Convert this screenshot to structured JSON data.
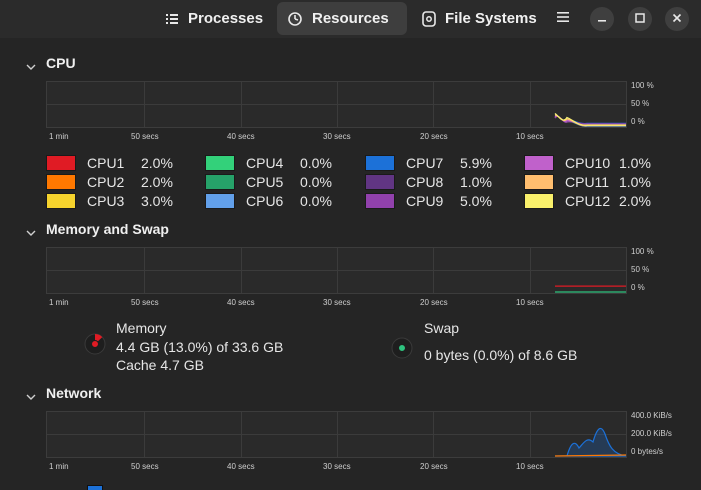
{
  "header": {
    "tabs": [
      {
        "label": "Processes",
        "icon": "list-icon"
      },
      {
        "label": "Resources",
        "icon": "gauge-icon"
      },
      {
        "label": "File Systems",
        "icon": "disk-icon"
      }
    ],
    "active_tab": "Resources"
  },
  "cpu": {
    "title": "CPU",
    "x_labels": [
      "1 min",
      "50 secs",
      "40 secs",
      "30 secs",
      "20 secs",
      "10 secs"
    ],
    "y_labels": [
      "100 %",
      "50 %",
      "0 %"
    ],
    "cores": [
      {
        "name": "CPU1",
        "value": "2.0%",
        "color": "#e01b24"
      },
      {
        "name": "CPU2",
        "value": "2.0%",
        "color": "#ff7800"
      },
      {
        "name": "CPU3",
        "value": "3.0%",
        "color": "#f6d32d"
      },
      {
        "name": "CPU4",
        "value": "0.0%",
        "color": "#33d17a"
      },
      {
        "name": "CPU5",
        "value": "0.0%",
        "color": "#26a269"
      },
      {
        "name": "CPU6",
        "value": "0.0%",
        "color": "#62a0ea"
      },
      {
        "name": "CPU7",
        "value": "5.9%",
        "color": "#1c71d8"
      },
      {
        "name": "CPU8",
        "value": "1.0%",
        "color": "#613583"
      },
      {
        "name": "CPU9",
        "value": "5.0%",
        "color": "#9141ac"
      },
      {
        "name": "CPU10",
        "value": "1.0%",
        "color": "#c061cb"
      },
      {
        "name": "CPU11",
        "value": "1.0%",
        "color": "#ffbe6f"
      },
      {
        "name": "CPU12",
        "value": "2.0%",
        "color": "#f9f06b"
      }
    ]
  },
  "memory": {
    "title": "Memory and Swap",
    "x_labels": [
      "1 min",
      "50 secs",
      "40 secs",
      "30 secs",
      "20 secs",
      "10 secs"
    ],
    "y_labels": [
      "100 %",
      "50 %",
      "0 %"
    ],
    "memory_label": "Memory",
    "memory_usage": "4.4 GB (13.0%) of 33.6 GB",
    "memory_cache": "Cache 4.7 GB",
    "memory_fraction": 0.13,
    "memory_color": "#e01b24",
    "swap_label": "Swap",
    "swap_usage": "0 bytes (0.0%) of 8.6 GB",
    "swap_color": "#2ec27e"
  },
  "network": {
    "title": "Network",
    "x_labels": [
      "1 min",
      "50 secs",
      "40 secs",
      "30 secs",
      "20 secs",
      "10 secs"
    ],
    "y_labels": [
      "400.0 KiB/s",
      "200.0 KiB/s",
      "0 bytes/s"
    ],
    "receiving_color": "#1c71d8",
    "sending_color": "#ff7800"
  }
}
